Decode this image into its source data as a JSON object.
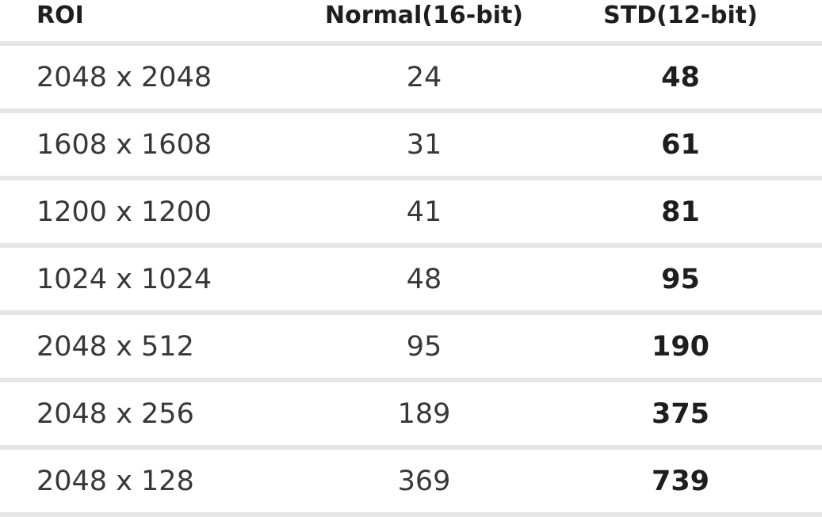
{
  "chart_data": {
    "type": "table",
    "columns": [
      "ROI",
      "Normal(16-bit)",
      "STD(12-bit)"
    ],
    "rows": [
      [
        "2048 x 2048",
        "24",
        "48"
      ],
      [
        "1608 x 1608",
        "31",
        "61"
      ],
      [
        "1200 x 1200",
        "41",
        "81"
      ],
      [
        "1024 x 1024",
        "48",
        "95"
      ],
      [
        "2048 x 512",
        "95",
        "190"
      ],
      [
        "2048 x 256",
        "189",
        "375"
      ],
      [
        "2048 x 128",
        "369",
        "739"
      ]
    ],
    "categories": [
      "2048 x 2048",
      "1608 x 1608",
      "1200 x 1200",
      "1024 x 1024",
      "2048 x 512",
      "2048 x 256",
      "2048 x 128"
    ],
    "series": [
      {
        "name": "Normal(16-bit)",
        "values": [
          24,
          31,
          41,
          48,
          95,
          189,
          369
        ]
      },
      {
        "name": "STD(12-bit)",
        "values": [
          48,
          61,
          81,
          95,
          190,
          375,
          739
        ]
      }
    ],
    "title": "",
    "layout_hints": {
      "std_column_bold": true,
      "divider_color": "#e6e6e6",
      "header_text_color": "#1e1e1e",
      "body_text_color": "#383838",
      "background": "#ffffff"
    }
  }
}
